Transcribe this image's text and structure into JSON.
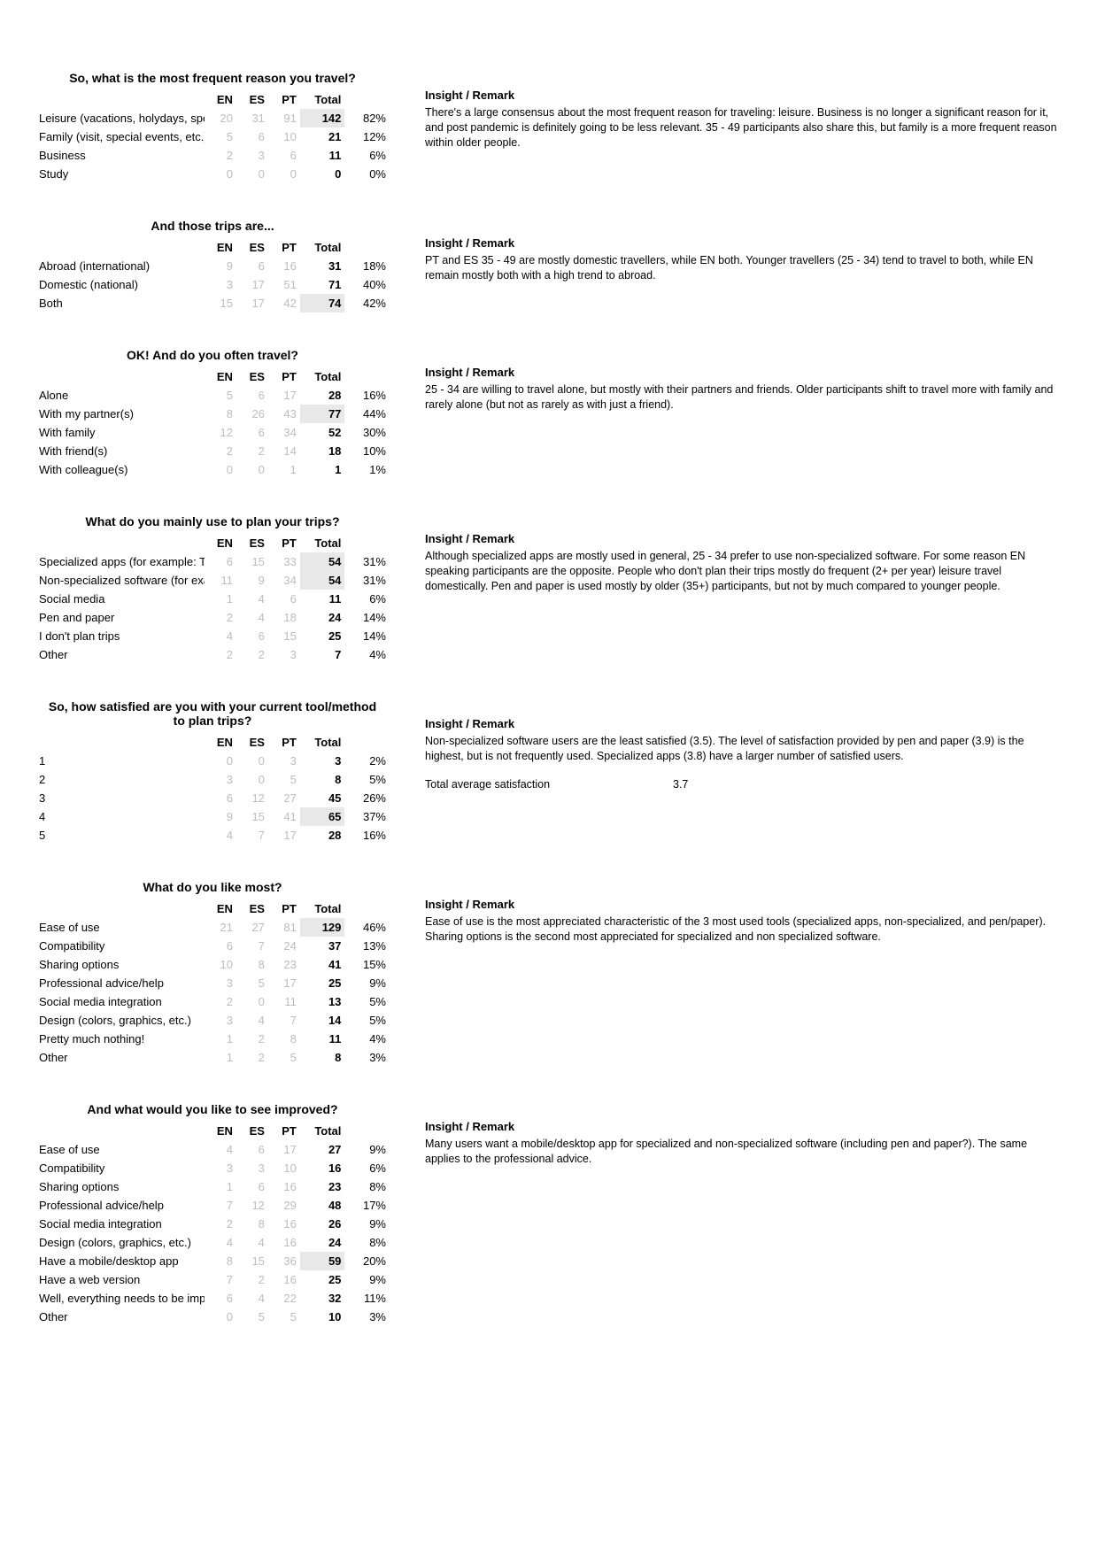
{
  "columns": [
    "EN",
    "ES",
    "PT",
    "Total",
    ""
  ],
  "insight_header": "Insight / Remark",
  "sections": [
    {
      "title": "So, what is the most frequent reason you travel?",
      "rows": [
        {
          "label": "Leisure (vacations, holydays, spo",
          "en": "20",
          "es": "31",
          "pt": "91",
          "total": "142",
          "pct": "82%",
          "hl": true
        },
        {
          "label": "Family (visit, special events, etc.)",
          "en": "5",
          "es": "6",
          "pt": "10",
          "total": "21",
          "pct": "12%"
        },
        {
          "label": "Business",
          "en": "2",
          "es": "3",
          "pt": "6",
          "total": "11",
          "pct": "6%"
        },
        {
          "label": "Study",
          "en": "0",
          "es": "0",
          "pt": "0",
          "total": "0",
          "pct": "0%"
        }
      ],
      "insight": "There's a large consensus about the most frequent reason for traveling: leisure. Business is no longer a significant reason for it, and post pandemic is definitely going to be less relevant. 35 - 49 participants also share this, but family is a more frequent reason within older people."
    },
    {
      "title": "And those trips are...",
      "rows": [
        {
          "label": "Abroad (international)",
          "en": "9",
          "es": "6",
          "pt": "16",
          "total": "31",
          "pct": "18%"
        },
        {
          "label": "Domestic (national)",
          "en": "3",
          "es": "17",
          "pt": "51",
          "total": "71",
          "pct": "40%"
        },
        {
          "label": "Both",
          "en": "15",
          "es": "17",
          "pt": "42",
          "total": "74",
          "pct": "42%",
          "hl": true
        }
      ],
      "insight": "PT and ES 35 - 49 are mostly domestic travellers, while EN both. Younger travellers (25 - 34) tend to travel to both, while EN remain mostly both with a high trend to abroad."
    },
    {
      "title": "OK! And do you often travel?",
      "rows": [
        {
          "label": "Alone",
          "en": "5",
          "es": "6",
          "pt": "17",
          "total": "28",
          "pct": "16%"
        },
        {
          "label": "With my partner(s)",
          "en": "8",
          "es": "26",
          "pt": "43",
          "total": "77",
          "pct": "44%",
          "hl": true
        },
        {
          "label": "With family",
          "en": "12",
          "es": "6",
          "pt": "34",
          "total": "52",
          "pct": "30%"
        },
        {
          "label": "With friend(s)",
          "en": "2",
          "es": "2",
          "pt": "14",
          "total": "18",
          "pct": "10%"
        },
        {
          "label": "With colleague(s)",
          "en": "0",
          "es": "0",
          "pt": "1",
          "total": "1",
          "pct": "1%"
        }
      ],
      "insight": "25 - 34 are willing to travel alone, but mostly with their partners and friends. Older participants shift to travel more with family and rarely alone (but not as rarely as with just a friend)."
    },
    {
      "title": "What do you mainly use to plan your trips?",
      "rows": [
        {
          "label": "Specialized apps (for example: T",
          "en": "6",
          "es": "15",
          "pt": "33",
          "total": "54",
          "pct": "31%",
          "hl": true
        },
        {
          "label": "Non-specialized software (for exa",
          "en": "11",
          "es": "9",
          "pt": "34",
          "total": "54",
          "pct": "31%",
          "hl": true
        },
        {
          "label": "Social media",
          "en": "1",
          "es": "4",
          "pt": "6",
          "total": "11",
          "pct": "6%"
        },
        {
          "label": "Pen and paper",
          "en": "2",
          "es": "4",
          "pt": "18",
          "total": "24",
          "pct": "14%"
        },
        {
          "label": "I don't plan trips",
          "en": "4",
          "es": "6",
          "pt": "15",
          "total": "25",
          "pct": "14%"
        },
        {
          "label": "Other",
          "en": "2",
          "es": "2",
          "pt": "3",
          "total": "7",
          "pct": "4%"
        }
      ],
      "insight": "Although specialized apps are mostly used in general, 25 - 34 prefer to use non-specialized software. For some reason EN speaking participants are the opposite. People who don't plan their trips mostly do frequent (2+ per year) leisure travel domestically. Pen and paper is used mostly by older (35+) participants, but not by much compared to younger people."
    },
    {
      "title": "So, how satisfied are you with your current tool/method to plan trips?",
      "rows": [
        {
          "label": "1",
          "en": "0",
          "es": "0",
          "pt": "3",
          "total": "3",
          "pct": "2%"
        },
        {
          "label": "2",
          "en": "3",
          "es": "0",
          "pt": "5",
          "total": "8",
          "pct": "5%"
        },
        {
          "label": "3",
          "en": "6",
          "es": "12",
          "pt": "27",
          "total": "45",
          "pct": "26%"
        },
        {
          "label": "4",
          "en": "9",
          "es": "15",
          "pt": "41",
          "total": "65",
          "pct": "37%",
          "hl": true
        },
        {
          "label": "5",
          "en": "4",
          "es": "7",
          "pt": "17",
          "total": "28",
          "pct": "16%"
        }
      ],
      "insight": "Non-specialized software users are the least satisfied (3.5). The level of satisfaction provided by pen and paper (3.9) is the highest, but is not frequently used. Specialized apps (3.8) have a larger number of satisfied users.",
      "extra_label": "Total average satisfaction",
      "extra_value": "3.7"
    },
    {
      "title": "What do you like most?",
      "rows": [
        {
          "label": "Ease of use",
          "en": "21",
          "es": "27",
          "pt": "81",
          "total": "129",
          "pct": "46%",
          "hl": true
        },
        {
          "label": "Compatibility",
          "en": "6",
          "es": "7",
          "pt": "24",
          "total": "37",
          "pct": "13%"
        },
        {
          "label": "Sharing options",
          "en": "10",
          "es": "8",
          "pt": "23",
          "total": "41",
          "pct": "15%"
        },
        {
          "label": "Professional advice/help",
          "en": "3",
          "es": "5",
          "pt": "17",
          "total": "25",
          "pct": "9%"
        },
        {
          "label": "Social media integration",
          "en": "2",
          "es": "0",
          "pt": "11",
          "total": "13",
          "pct": "5%"
        },
        {
          "label": "Design (colors, graphics, etc.)",
          "en": "3",
          "es": "4",
          "pt": "7",
          "total": "14",
          "pct": "5%"
        },
        {
          "label": "Pretty much nothing!",
          "en": "1",
          "es": "2",
          "pt": "8",
          "total": "11",
          "pct": "4%"
        },
        {
          "label": "Other",
          "en": "1",
          "es": "2",
          "pt": "5",
          "total": "8",
          "pct": "3%"
        }
      ],
      "insight": "Ease of use is the most appreciated characteristic of the 3 most used tools (specialized apps, non-specialized, and pen/paper). Sharing options is the second most appreciated for specialized and non specialized software."
    },
    {
      "title": "And what would you like to see improved?",
      "rows": [
        {
          "label": "Ease of use",
          "en": "4",
          "es": "6",
          "pt": "17",
          "total": "27",
          "pct": "9%"
        },
        {
          "label": "Compatibility",
          "en": "3",
          "es": "3",
          "pt": "10",
          "total": "16",
          "pct": "6%"
        },
        {
          "label": "Sharing options",
          "en": "1",
          "es": "6",
          "pt": "16",
          "total": "23",
          "pct": "8%"
        },
        {
          "label": "Professional advice/help",
          "en": "7",
          "es": "12",
          "pt": "29",
          "total": "48",
          "pct": "17%"
        },
        {
          "label": "Social media integration",
          "en": "2",
          "es": "8",
          "pt": "16",
          "total": "26",
          "pct": "9%"
        },
        {
          "label": "Design (colors, graphics, etc.)",
          "en": "4",
          "es": "4",
          "pt": "16",
          "total": "24",
          "pct": "8%"
        },
        {
          "label": "Have a mobile/desktop app",
          "en": "8",
          "es": "15",
          "pt": "36",
          "total": "59",
          "pct": "20%",
          "hl": true
        },
        {
          "label": "Have a web version",
          "en": "7",
          "es": "2",
          "pt": "16",
          "total": "25",
          "pct": "9%"
        },
        {
          "label": "Well, everything needs to be imp",
          "en": "6",
          "es": "4",
          "pt": "22",
          "total": "32",
          "pct": "11%"
        },
        {
          "label": "Other",
          "en": "0",
          "es": "5",
          "pt": "5",
          "total": "10",
          "pct": "3%"
        }
      ],
      "insight": "Many users want a mobile/desktop app for specialized and non-specialized software (including pen and paper?). The same applies to the professional advice."
    }
  ]
}
